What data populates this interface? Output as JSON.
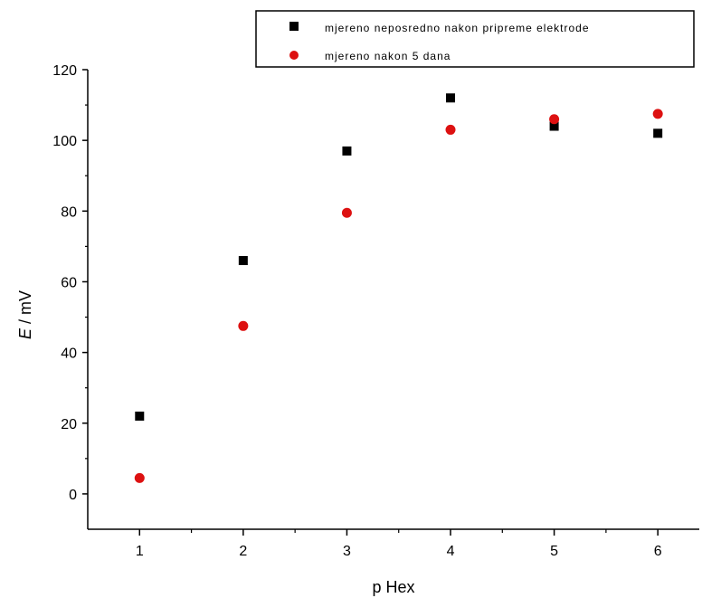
{
  "chart_data": {
    "type": "scatter",
    "xlabel": "p Hex",
    "ylabel_italic": "E",
    "ylabel_rest": " / mV",
    "xlim": [
      0.5,
      6.4
    ],
    "ylim": [
      -10,
      120
    ],
    "xticks": [
      1,
      2,
      3,
      4,
      5,
      6
    ],
    "xticks_minor": [
      1.5,
      2.5,
      3.5,
      4.5,
      5.5
    ],
    "yticks": [
      0,
      20,
      40,
      60,
      80,
      100,
      120
    ],
    "yticks_minor": [
      10,
      30,
      50,
      70,
      90,
      110
    ],
    "grid": false,
    "legend_placement": "top-right",
    "series": [
      {
        "name": "mjereno neposredno nakon pripreme elektrode",
        "marker": "square",
        "color": "#000000",
        "x": [
          1,
          2,
          3,
          4,
          5,
          6
        ],
        "y": [
          22,
          66,
          97,
          112,
          104,
          102
        ]
      },
      {
        "name": "mjereno nakon 5 dana",
        "marker": "circle",
        "color": "#dd1111",
        "x": [
          1,
          2,
          3,
          4,
          5,
          6
        ],
        "y": [
          4.5,
          47.5,
          79.5,
          103,
          106,
          107.5
        ]
      }
    ]
  }
}
